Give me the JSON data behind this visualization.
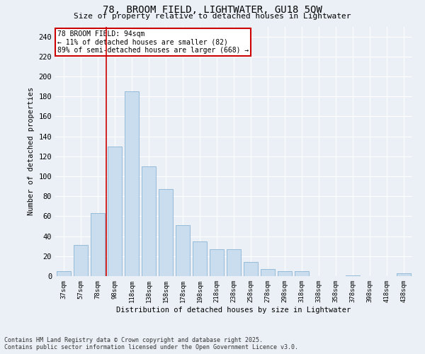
{
  "title_line1": "78, BROOM FIELD, LIGHTWATER, GU18 5QW",
  "title_line2": "Size of property relative to detached houses in Lightwater",
  "xlabel": "Distribution of detached houses by size in Lightwater",
  "ylabel": "Number of detached properties",
  "categories": [
    "37sqm",
    "57sqm",
    "78sqm",
    "98sqm",
    "118sqm",
    "138sqm",
    "158sqm",
    "178sqm",
    "198sqm",
    "218sqm",
    "238sqm",
    "258sqm",
    "278sqm",
    "298sqm",
    "318sqm",
    "338sqm",
    "358sqm",
    "378sqm",
    "398sqm",
    "418sqm",
    "438sqm"
  ],
  "values": [
    5,
    31,
    63,
    130,
    185,
    110,
    87,
    51,
    35,
    27,
    27,
    14,
    7,
    5,
    5,
    0,
    0,
    1,
    0,
    0,
    3
  ],
  "bar_color": "#c9ddef",
  "bar_edge_color": "#8ab4d4",
  "bg_color": "#eaf0f6",
  "grid_color": "#ffffff",
  "marker_line_color": "#cc0000",
  "annotation_line1": "78 BROOM FIELD: 94sqm",
  "annotation_line2": "← 11% of detached houses are smaller (82)",
  "annotation_line3": "89% of semi-detached houses are larger (668) →",
  "annotation_box_color": "#ffffff",
  "annotation_box_edge": "#cc0000",
  "ylim": [
    0,
    250
  ],
  "yticks": [
    0,
    20,
    40,
    60,
    80,
    100,
    120,
    140,
    160,
    180,
    200,
    220,
    240
  ],
  "footer_line1": "Contains HM Land Registry data © Crown copyright and database right 2025.",
  "footer_line2": "Contains public sector information licensed under the Open Government Licence v3.0."
}
